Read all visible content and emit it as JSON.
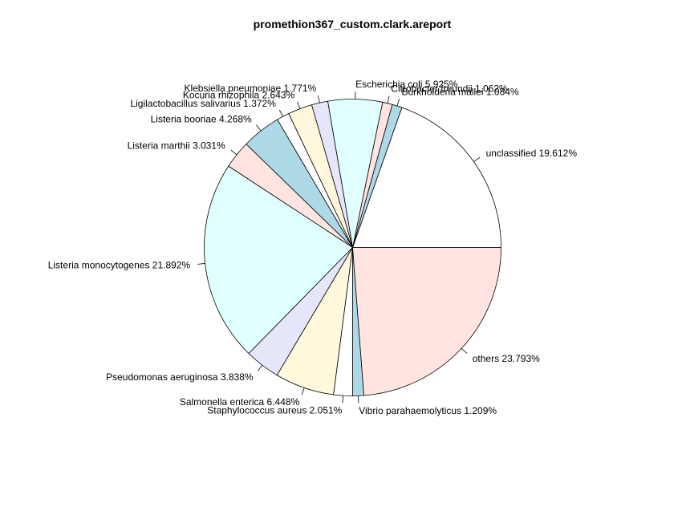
{
  "chart_data": {
    "type": "pie",
    "title": "promethion367_custom.clark.areport",
    "direction": "counterclockwise",
    "start_angle_deg": 0,
    "slices": [
      {
        "label": "unclassified 19.612%",
        "value": 19.612,
        "color": "#ffffff"
      },
      {
        "label": "Burkholderia mallei 1.084%",
        "value": 1.084,
        "color": "#add8e6"
      },
      {
        "label": "Citrobacter freundii 1.062%",
        "value": 1.062,
        "color": "#ffe4e1"
      },
      {
        "label": "Escherichia coli 5.925%",
        "value": 5.925,
        "color": "#e0ffff"
      },
      {
        "label": "Klebsiella pneumoniae 1.771%",
        "value": 1.771,
        "color": "#e6e6fa"
      },
      {
        "label": "Kocuria rhizophila 2.643%",
        "value": 2.643,
        "color": "#fff8dc"
      },
      {
        "label": "Ligilactobacillus salivarius 1.372%",
        "value": 1.372,
        "color": "#ffffff"
      },
      {
        "label": "Listeria booriae 4.268%",
        "value": 4.268,
        "color": "#add8e6"
      },
      {
        "label": "Listeria marthii 3.031%",
        "value": 3.031,
        "color": "#ffe4e1"
      },
      {
        "label": "Listeria monocytogenes 21.892%",
        "value": 21.892,
        "color": "#e0ffff"
      },
      {
        "label": "Pseudomonas aeruginosa 3.838%",
        "value": 3.838,
        "color": "#e6e6fa"
      },
      {
        "label": "Salmonella enterica 6.448%",
        "value": 6.448,
        "color": "#fff8dc"
      },
      {
        "label": "Staphylococcus aureus 2.051%",
        "value": 2.051,
        "color": "#ffffff"
      },
      {
        "label": "Vibrio parahaemolyticus 1.209%",
        "value": 1.209,
        "color": "#add8e6"
      },
      {
        "label": "others 23.793%",
        "value": 23.793,
        "color": "#ffe4e1"
      }
    ]
  }
}
